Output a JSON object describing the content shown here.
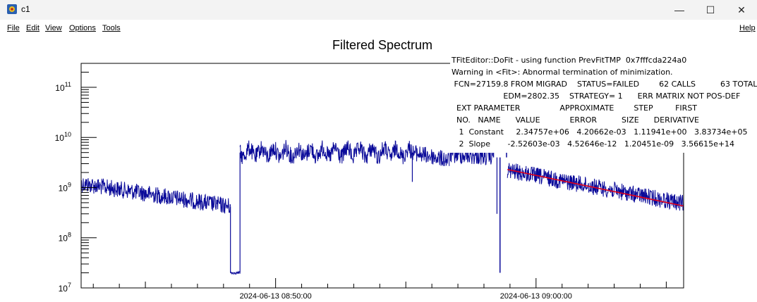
{
  "window": {
    "title": "c1",
    "minimize_glyph": "—",
    "maximize_glyph": "☐",
    "close_glyph": "✕",
    "app_icon": "root-canvas-icon"
  },
  "menu": {
    "items": [
      "File",
      "Edit",
      "View",
      "Options",
      "Tools"
    ],
    "help": "Help"
  },
  "chart_data": {
    "type": "line",
    "title": "Filtered Spectrum",
    "y_scale": "log",
    "ylim": [
      10000000.0,
      300000000000.0
    ],
    "y_ticks": [
      {
        "value": 10000000.0,
        "label": "10^7"
      },
      {
        "value": 100000000.0,
        "label": "10^8"
      },
      {
        "value": 1000000000.0,
        "label": "10^9"
      },
      {
        "value": 10000000000.0,
        "label": "10^10"
      },
      {
        "value": 100000000000.0,
        "label": "10^11"
      }
    ],
    "xlim": [
      "2024-06-13 08:42:32",
      "2024-06-13 09:05:40"
    ],
    "x_ticks": [
      {
        "value": "2024-06-13 08:50:00",
        "label": "2024-06-13 08:50:00"
      },
      {
        "value": "2024-06-13 09:00:00",
        "label": "2024-06-13 09:00:00"
      }
    ],
    "grid": false,
    "colors": {
      "data": "#0a0a99",
      "fit": "#e0001b"
    },
    "series": [
      {
        "name": "",
        "segments": [
          {
            "x": [
              "2024-06-13 08:42:32",
              "2024-06-13 08:48:16"
            ],
            "y_start": 1200000000.0,
            "y_end": 420000000.0
          },
          {
            "x": [
              "2024-06-13 08:48:16",
              "2024-06-13 08:48:38"
            ],
            "y_start": 20000000.0,
            "y_end": 20000000.0
          },
          {
            "x": [
              "2024-06-13 08:48:38",
              "2024-06-13 08:55:14"
            ],
            "y_start": 5000000000.0,
            "y_end": 5000000000.0
          },
          {
            "x": [
              "2024-06-13 08:55:16",
              "2024-06-13 08:56:40"
            ],
            "y_start": 5000000000.0,
            "y_end": 3500000000.0
          },
          {
            "x": [
              "2024-06-13 08:56:42",
              "2024-06-13 08:58:20"
            ],
            "y_start": 4500000000.0,
            "y_end": 4000000000.0
          },
          {
            "x": [
              "2024-06-13 08:58:54",
              "2024-06-13 09:05:40"
            ],
            "y_start": 2200000000.0,
            "y_end": 480000000.0
          }
        ],
        "spikes": [
          {
            "x": "2024-06-13 08:58:22",
            "y": 180000000000.0
          },
          {
            "x": "2024-06-13 08:58:37",
            "y": 20000000.0
          },
          {
            "x": "2024-06-13 08:58:52",
            "y": 30000000000.0
          }
        ]
      }
    ],
    "fit": {
      "function": "exponential",
      "x": [
        "2024-06-13 08:58:54",
        "2024-06-13 09:05:40"
      ],
      "y_start": 2300000000.0,
      "y_end": 430000000.0
    }
  },
  "fit_output": {
    "lines": [
      "TFitEditor::DoFit - using function PrevFitTMP  0x7fffcda224a0",
      "Warning in <Fit>: Abnormal termination of minimization.",
      " FCN=27159.8 FROM MIGRAD    STATUS=FAILED        62 CALLS          63 TOTAL",
      "                     EDM=2802.35    STRATEGY= 1      ERR MATRIX NOT POS-DEF",
      "  EXT PARAMETER                APPROXIMATE        STEP         FIRST",
      "  NO.   NAME      VALUE            ERROR          SIZE      DERIVATIVE",
      "   1  Constant     2.34757e+06   4.20662e-03   1.11941e+00   3.83734e+05",
      "   2  Slope       -2.52603e-03   4.52646e-12   1.20451e-09   3.56615e+14"
    ]
  }
}
